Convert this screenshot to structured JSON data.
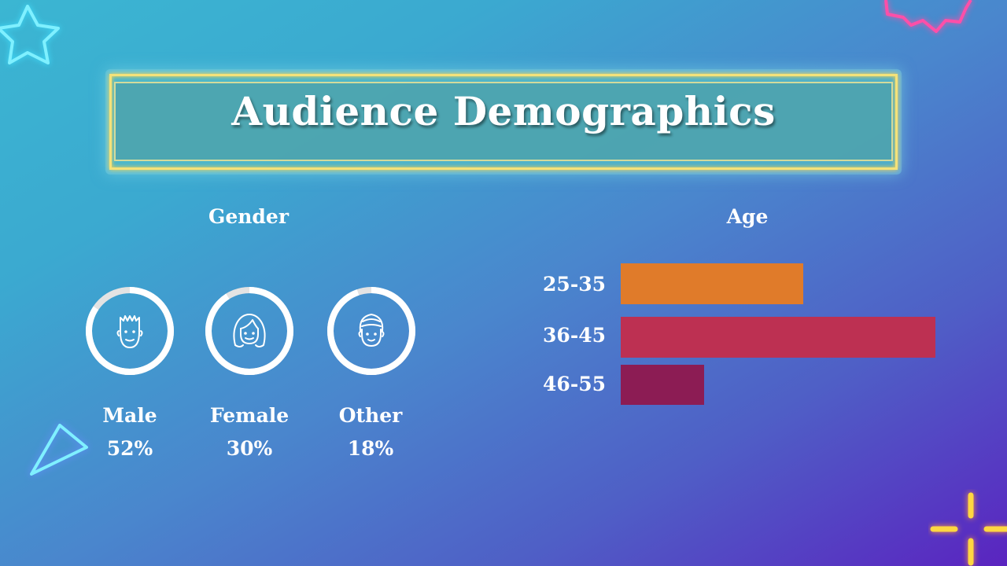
{
  "title": "Audience Demographics",
  "gender": {
    "heading": "Gender",
    "ring_color": "#ffffff",
    "track_color": "#e3e3e3",
    "items": [
      {
        "label": "Male",
        "value": "52%",
        "percent": 52,
        "icon": "male-face-icon"
      },
      {
        "label": "Female",
        "value": "30%",
        "percent": 30,
        "icon": "female-face-icon"
      },
      {
        "label": "Other",
        "value": "18%",
        "percent": 18,
        "icon": "other-face-icon"
      }
    ]
  },
  "age": {
    "heading": "Age",
    "groups": [
      {
        "label": "25-35",
        "color": "#e07b2a"
      },
      {
        "label": "36-45",
        "color": "#bd3052"
      },
      {
        "label": "46-55",
        "color": "#8c1c54"
      }
    ]
  },
  "decorations": {
    "star_color": "#7ff0ff",
    "triangle_color": "#7ff0ff",
    "burst_color": "#ff4fa8",
    "sparkle_color": "#ffd740"
  }
}
